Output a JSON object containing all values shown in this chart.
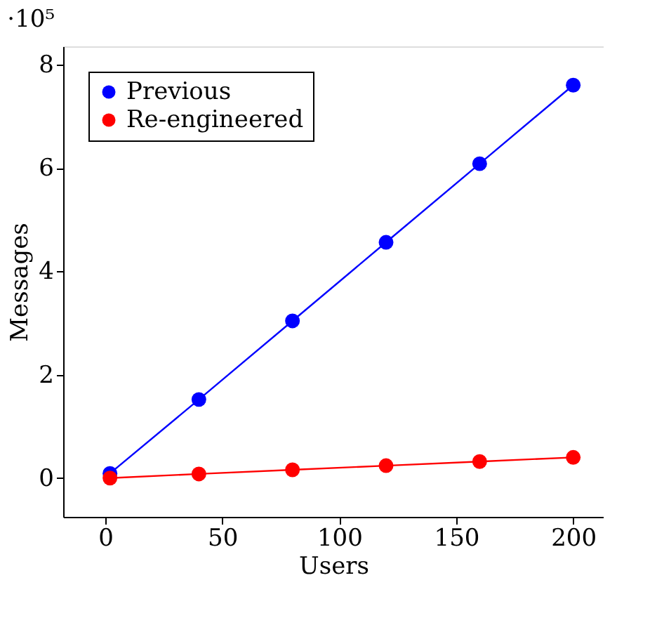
{
  "chart_data": {
    "type": "line",
    "xlabel": "Users",
    "ylabel": "Messages",
    "annotations": [
      "·10⁵"
    ],
    "x": [
      2,
      40,
      80,
      120,
      160,
      200
    ],
    "series": [
      {
        "name": "Previous",
        "color": "#0000ff",
        "values": [
          0.09,
          1.52,
          3.04,
          4.56,
          6.08,
          7.6
        ]
      },
      {
        "name": "Re-engineered",
        "color": "#ff0000",
        "values": [
          0,
          0.08,
          0.16,
          0.24,
          0.32,
          0.4
        ]
      }
    ],
    "xlim": [
      -18,
      213
    ],
    "xticks": [
      0,
      50,
      100,
      150,
      200
    ],
    "ylim": [
      -0.75,
      8.35
    ],
    "yticks": [
      0,
      2,
      4,
      6,
      8
    ],
    "grid": false,
    "legend": "top left",
    "marker": "circle",
    "line_style": "solid"
  }
}
